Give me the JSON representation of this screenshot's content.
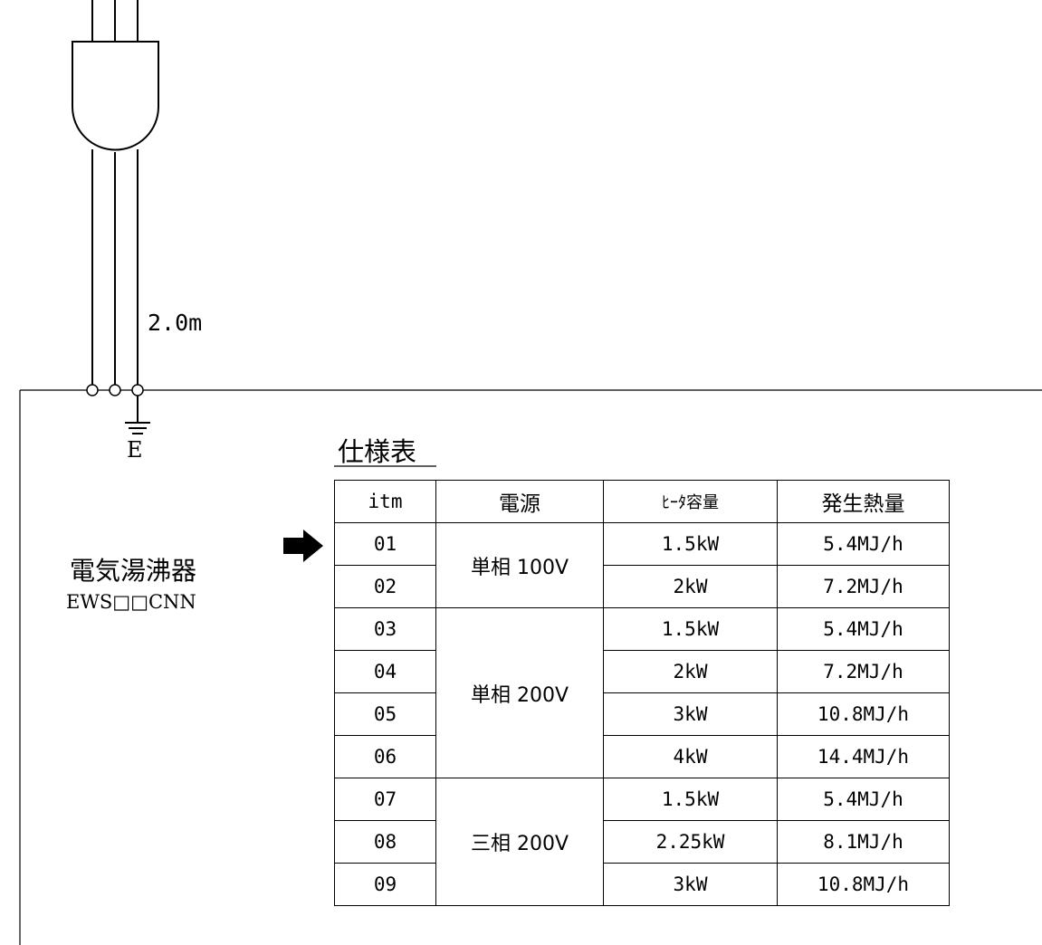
{
  "diagram": {
    "cord_length": "2.0m",
    "earth_label": "E",
    "product_name": "電気湯沸器",
    "model_code": "EWS□□CNN"
  },
  "spec_table": {
    "title": "仕様表",
    "headers": [
      "itm",
      "電源",
      "ﾋｰﾀ容量",
      "発生熱量"
    ],
    "rows": [
      {
        "itm": "01",
        "power": "単相 100V",
        "heater": "1.5kW",
        "heat": "5.4MJ/h"
      },
      {
        "itm": "02",
        "power": "単相 100V",
        "heater": "2kW",
        "heat": "7.2MJ/h"
      },
      {
        "itm": "03",
        "power": "単相 200V",
        "heater": "1.5kW",
        "heat": "5.4MJ/h"
      },
      {
        "itm": "04",
        "power": "単相 200V",
        "heater": "2kW",
        "heat": "7.2MJ/h"
      },
      {
        "itm": "05",
        "power": "単相 200V",
        "heater": "3kW",
        "heat": "10.8MJ/h"
      },
      {
        "itm": "06",
        "power": "単相 200V",
        "heater": "4kW",
        "heat": "14.4MJ/h"
      },
      {
        "itm": "07",
        "power": "三相 200V",
        "heater": "1.5kW",
        "heat": "5.4MJ/h"
      },
      {
        "itm": "08",
        "power": "三相 200V",
        "heater": "2.25kW",
        "heat": "8.1MJ/h"
      },
      {
        "itm": "09",
        "power": "三相 200V",
        "heater": "3kW",
        "heat": "10.8MJ/h"
      }
    ],
    "power_groups": [
      {
        "label": "単相 100V"
      },
      {
        "label": "単相 200V"
      },
      {
        "label": "三相 200V"
      }
    ]
  },
  "icons": {
    "plug": "plug-icon",
    "ground": "ground-icon",
    "arrow": "arrow-right-icon"
  }
}
